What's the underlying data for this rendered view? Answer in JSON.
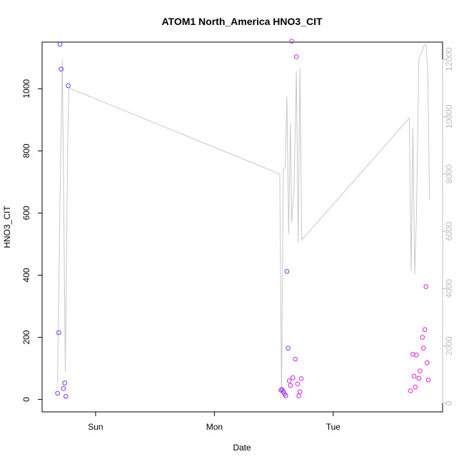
{
  "chart_data": {
    "type": "scatter",
    "title": "ATOM1 North_America HNO3_CIT",
    "xlabel": "Date",
    "ylabel": "HNO3_CIT",
    "x_ticks": [
      "Sun",
      "Mon",
      "Tue"
    ],
    "x_tick_values": [
      1,
      2,
      3
    ],
    "xlim": [
      0.55,
      3.92
    ],
    "ylim": [
      -40,
      1150
    ],
    "y_ticks": [
      0,
      200,
      400,
      600,
      800,
      1000
    ],
    "y2lim": [
      -300,
      12600
    ],
    "y2_ticks": [
      0,
      2000,
      4000,
      6000,
      8000,
      10000,
      12000
    ],
    "grid": false,
    "legend": "none",
    "colors": {
      "axis": "#000000",
      "secondary_axis": "#bdbdbd",
      "secondary_line": "#c8c8c8"
    },
    "series": [
      {
        "color": "#7b2ff7",
        "points": [
          {
            "x": 0.68,
            "y": 20
          },
          {
            "x": 0.69,
            "y": 215
          },
          {
            "x": 0.7,
            "y": 1143
          },
          {
            "x": 0.71,
            "y": 1063
          },
          {
            "x": 0.73,
            "y": 35
          },
          {
            "x": 0.74,
            "y": 53
          },
          {
            "x": 0.75,
            "y": 10
          },
          {
            "x": 0.77,
            "y": 1010
          }
        ]
      },
      {
        "color": "#a52be0",
        "points": [
          {
            "x": 2.56,
            "y": 30
          },
          {
            "x": 2.57,
            "y": 32
          },
          {
            "x": 2.58,
            "y": 25
          },
          {
            "x": 2.59,
            "y": 18
          },
          {
            "x": 2.6,
            "y": 12
          },
          {
            "x": 2.61,
            "y": 412
          },
          {
            "x": 2.62,
            "y": 165
          }
        ]
      },
      {
        "color": "#d326e8",
        "points": [
          {
            "x": 2.63,
            "y": 60
          },
          {
            "x": 2.64,
            "y": 45
          },
          {
            "x": 2.65,
            "y": 1153
          },
          {
            "x": 2.66,
            "y": 70
          },
          {
            "x": 2.68,
            "y": 130
          },
          {
            "x": 2.69,
            "y": 1103
          },
          {
            "x": 2.7,
            "y": 50
          },
          {
            "x": 2.71,
            "y": 12
          },
          {
            "x": 2.72,
            "y": 25
          },
          {
            "x": 2.73,
            "y": 67
          }
        ]
      },
      {
        "color": "#e81ee0",
        "points": [
          {
            "x": 3.65,
            "y": 28
          },
          {
            "x": 3.67,
            "y": 145
          },
          {
            "x": 3.68,
            "y": 75
          },
          {
            "x": 3.69,
            "y": 40
          },
          {
            "x": 3.7,
            "y": 143
          },
          {
            "x": 3.72,
            "y": 68
          },
          {
            "x": 3.73,
            "y": 92
          },
          {
            "x": 3.75,
            "y": 200
          },
          {
            "x": 3.76,
            "y": 165
          },
          {
            "x": 3.77,
            "y": 225
          },
          {
            "x": 3.78,
            "y": 363
          },
          {
            "x": 3.79,
            "y": 118
          },
          {
            "x": 3.8,
            "y": 63
          }
        ]
      }
    ],
    "secondary_series": {
      "axis": "right",
      "points": [
        {
          "x": 0.68,
          "y": 700
        },
        {
          "x": 0.7,
          "y": 7000
        },
        {
          "x": 0.72,
          "y": 12000
        },
        {
          "x": 0.745,
          "y": 1100
        },
        {
          "x": 0.765,
          "y": 9000
        },
        {
          "x": 0.775,
          "y": 11000
        },
        {
          "x": 2.55,
          "y": 8000
        },
        {
          "x": 2.565,
          "y": 300
        },
        {
          "x": 2.58,
          "y": 8200
        },
        {
          "x": 2.595,
          "y": 8200
        },
        {
          "x": 2.61,
          "y": 10700
        },
        {
          "x": 2.625,
          "y": 5900
        },
        {
          "x": 2.64,
          "y": 9800
        },
        {
          "x": 2.65,
          "y": 6300
        },
        {
          "x": 2.67,
          "y": 7500
        },
        {
          "x": 2.69,
          "y": 11600
        },
        {
          "x": 2.705,
          "y": 5600
        },
        {
          "x": 2.72,
          "y": 11700
        },
        {
          "x": 2.735,
          "y": 5700
        },
        {
          "x": 3.64,
          "y": 9950
        },
        {
          "x": 3.655,
          "y": 4600
        },
        {
          "x": 3.67,
          "y": 9600
        },
        {
          "x": 3.685,
          "y": 4500
        },
        {
          "x": 3.7,
          "y": 6500
        },
        {
          "x": 3.72,
          "y": 12000
        },
        {
          "x": 3.75,
          "y": 12300
        },
        {
          "x": 3.765,
          "y": 12500
        },
        {
          "x": 3.78,
          "y": 12500
        },
        {
          "x": 3.795,
          "y": 11600
        },
        {
          "x": 3.81,
          "y": 7100
        }
      ]
    }
  }
}
